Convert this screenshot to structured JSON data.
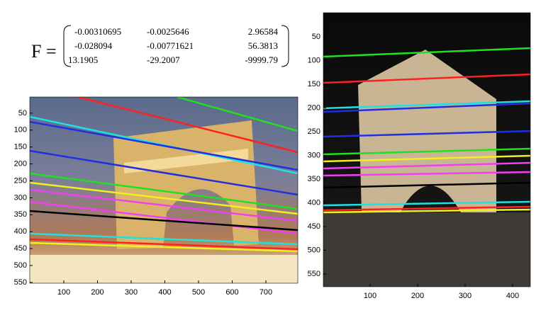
{
  "matrix": {
    "label": "F =",
    "rows": [
      [
        "-0.00310695",
        "-0.0025646",
        "2.96584"
      ],
      [
        "-0.028094",
        "-0.00771621",
        "56.3813"
      ],
      [
        "13.1905",
        "-29.2007",
        "-9999.79"
      ]
    ]
  },
  "left_axes": {
    "xticks": [
      100,
      200,
      300,
      400,
      500,
      600,
      700
    ],
    "yticks": [
      50,
      100,
      150,
      200,
      250,
      300,
      350,
      400,
      450,
      500,
      550
    ]
  },
  "right_axes": {
    "xticks": [
      100,
      200,
      300,
      400
    ],
    "yticks": [
      50,
      100,
      150,
      200,
      250,
      300,
      350,
      400,
      450,
      500,
      550
    ]
  }
}
